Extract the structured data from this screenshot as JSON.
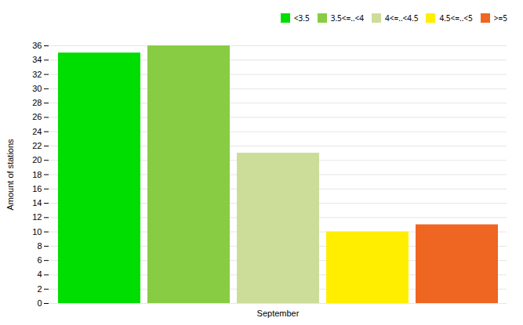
{
  "chart_data": {
    "type": "bar",
    "ylabel": "Amount of stations",
    "categories": [
      "September"
    ],
    "series": [
      {
        "name": "<3.5",
        "color": "#00dd00",
        "values": [
          35
        ]
      },
      {
        "name": "3.5<=..<4",
        "color": "#88cc44",
        "values": [
          36
        ]
      },
      {
        "name": "4<=..<4.5",
        "color": "#ccdd99",
        "values": [
          21
        ]
      },
      {
        "name": "4.5<=..<5",
        "color": "#ffee00",
        "values": [
          10
        ]
      },
      {
        "name": ">=5",
        "color": "#ee6622",
        "values": [
          11
        ]
      }
    ],
    "ylim": [
      0,
      36
    ],
    "yticks": [
      0,
      2,
      4,
      6,
      8,
      10,
      12,
      14,
      16,
      18,
      20,
      22,
      24,
      26,
      28,
      30,
      32,
      34,
      36
    ],
    "grid": true,
    "legend": "upper right"
  }
}
